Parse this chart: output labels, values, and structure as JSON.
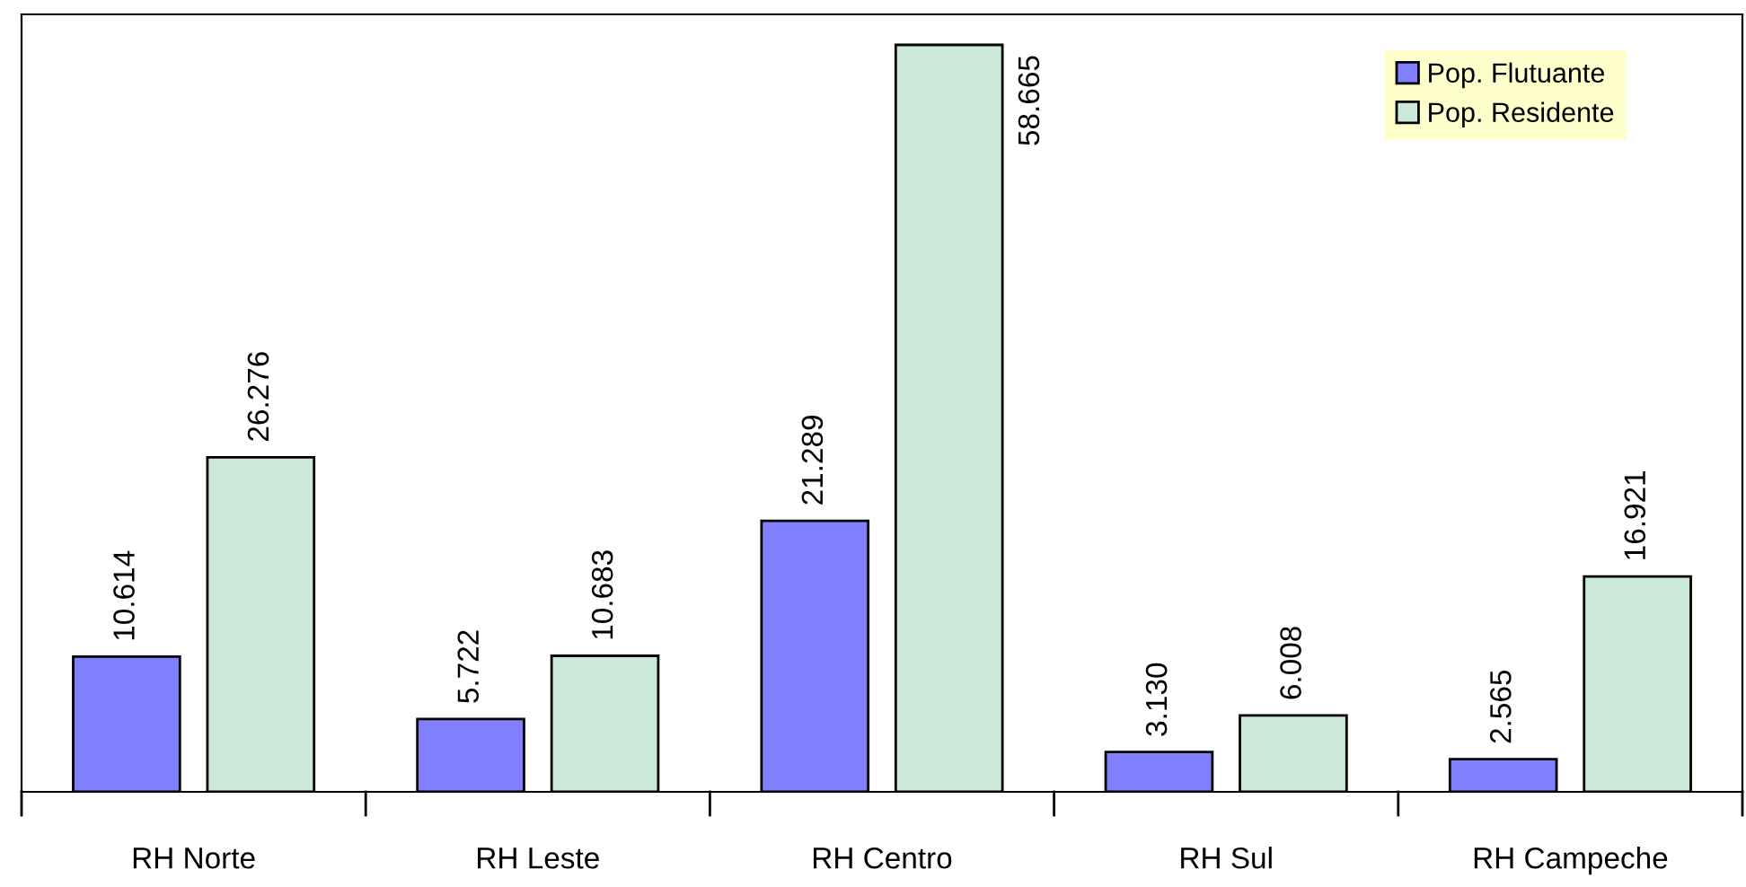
{
  "chart_data": {
    "type": "bar",
    "categories": [
      "RH Norte",
      "RH Leste",
      "RH Centro",
      "RH Sul",
      "RH Campeche"
    ],
    "series": [
      {
        "name": "Pop. Flutuante",
        "color": "#8080ff",
        "values": [
          10614,
          5722,
          21289,
          3130,
          2565
        ],
        "value_labels": [
          "10.614",
          "5.722",
          "21.289",
          "3.130",
          "2.565"
        ]
      },
      {
        "name": "Pop. Residente",
        "color": "#cce8d8",
        "values": [
          26276,
          10683,
          58665,
          6008,
          16921
        ],
        "value_labels": [
          "26.276",
          "10.683",
          "58.665",
          "6.008",
          "16.921"
        ]
      }
    ],
    "legend": "top right",
    "grid": false,
    "tick_labels": "x"
  }
}
